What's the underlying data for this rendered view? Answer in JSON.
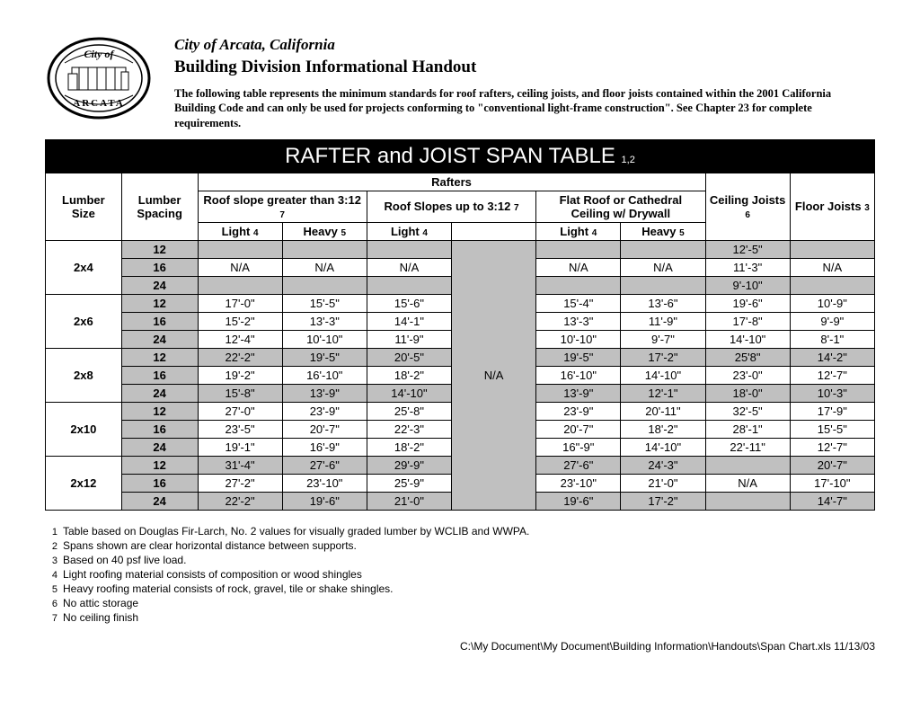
{
  "header": {
    "org_title": "City of Arcata, California",
    "handout_title": "Building Division Informational Handout",
    "intro": "The following table represents the minimum standards for roof rafters, ceiling joists, and floor joists contained within the 2001 California Building Code and can only be used for projects conforming to \"conventional light-frame construction\". See Chapter 23 for complete requirements."
  },
  "table": {
    "banner_text": "RAFTER and JOIST SPAN TABLE ",
    "banner_sub": "1,2",
    "head": {
      "lumber_size": "Lumber Size",
      "lumber_spacing": "Lumber Spacing",
      "rafters": "Rafters",
      "ceiling_joists": "Ceiling Joists ",
      "ceiling_joists_sub": "6",
      "floor_joists": "Floor Joists ",
      "floor_joists_sub": "3",
      "roof_gt": "Roof slope greater than 3:12 ",
      "roof_gt_sub": "7",
      "roof_up": "Roof  Slopes up to 3:12 ",
      "roof_up_sub": "7",
      "flat_roof": "Flat Roof or Cathedral Ceiling w/ Drywall",
      "light": "Light ",
      "light_sub": "4",
      "heavy": "Heavy ",
      "heavy_sub": "5"
    },
    "na_heavy_center": "N/A",
    "lumber_sizes": [
      "2x4",
      "2x6",
      "2x8",
      "2x10",
      "2x12"
    ],
    "spacings": [
      "12",
      "16",
      "24"
    ],
    "rows": [
      {
        "cells": [
          "",
          "",
          "",
          "",
          "",
          "12'-5\"",
          ""
        ],
        "shade": true
      },
      {
        "cells": [
          "N/A",
          "N/A",
          "N/A",
          "N/A",
          "N/A",
          "11'-3\"",
          "N/A"
        ],
        "shade": false
      },
      {
        "cells": [
          "",
          "",
          "",
          "",
          "",
          "9'-10\"",
          ""
        ],
        "shade": true
      },
      {
        "cells": [
          "17'-0\"",
          "15'-5\"",
          "15'-6\"",
          "15'-4\"",
          "13'-6\"",
          "19'-6\"",
          "10'-9\""
        ],
        "shade": false
      },
      {
        "cells": [
          "15'-2\"",
          "13'-3\"",
          "14'-1\"",
          "13'-3\"",
          "11'-9\"",
          "17'-8\"",
          "9'-9\""
        ],
        "shade": false
      },
      {
        "cells": [
          "12'-4\"",
          "10'-10\"",
          "11'-9\"",
          "10'-10\"",
          "9'-7\"",
          "14'-10\"",
          "8'-1\""
        ],
        "shade": false
      },
      {
        "cells": [
          "22'-2\"",
          "19'-5\"",
          "20'-5\"",
          "19'-5\"",
          "17'-2\"",
          "25'8\"",
          "14'-2\""
        ],
        "shade": true
      },
      {
        "cells": [
          "19'-2\"",
          "16'-10\"",
          "18'-2\"",
          "16'-10\"",
          "14'-10\"",
          "23'-0\"",
          "12'-7\""
        ],
        "shade": false
      },
      {
        "cells": [
          "15'-8\"",
          "13'-9\"",
          "14'-10\"",
          "13'-9\"",
          "12'-1\"",
          "18'-0\"",
          "10'-3\""
        ],
        "shade": true
      },
      {
        "cells": [
          "27'-0\"",
          "23'-9\"",
          "25'-8\"",
          "23'-9\"",
          "20'-11\"",
          "32'-5\"",
          "17'-9\""
        ],
        "shade": false
      },
      {
        "cells": [
          "23'-5\"",
          "20'-7\"",
          "22'-3\"",
          "20'-7\"",
          "18'-2\"",
          "28'-1\"",
          "15'-5\""
        ],
        "shade": false
      },
      {
        "cells": [
          "19'-1\"",
          "16'-9\"",
          "18'-2\"",
          "16\"-9\"",
          "14'-10\"",
          "22'-11\"",
          "12'-7\""
        ],
        "shade": false
      },
      {
        "cells": [
          "31'-4\"",
          "27'-6\"",
          "29'-9\"",
          "27'-6\"",
          "24'-3\"",
          "",
          "20'-7\""
        ],
        "shade": true
      },
      {
        "cells": [
          "27'-2\"",
          "23'-10\"",
          "25'-9\"",
          "23'-10\"",
          "21'-0\"",
          "N/A",
          "17'-10\""
        ],
        "shade": false
      },
      {
        "cells": [
          "22'-2\"",
          "19'-6\"",
          "21'-0\"",
          "19'-6\"",
          "17'-2\"",
          "",
          "14'-7\""
        ],
        "shade": true
      }
    ]
  },
  "footnotes": [
    "Table based on Douglas Fir-Larch, No. 2 values for visually graded lumber by WCLIB and WWPA.",
    "Spans shown are clear horizontal distance between supports.",
    "Based on 40 psf live load.",
    "Light roofing material consists of composition or wood shingles",
    "Heavy roofing material consists of rock, gravel, tile or shake shingles.",
    "No attic storage",
    "No ceiling finish"
  ],
  "file_path": "C:\\My Document\\My Document\\Building Information\\Handouts\\Span Chart.xls  11/13/03"
}
